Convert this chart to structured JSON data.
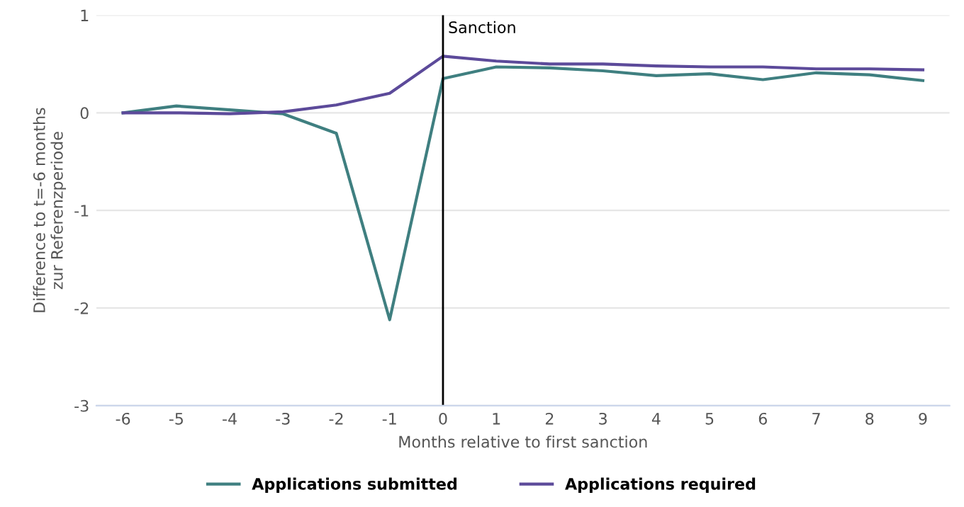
{
  "chart_data": {
    "type": "line",
    "xlabel": "Months relative to first sanction",
    "ylabel": "Difference to t=-6 months\nzur Referenzperiode",
    "x": [
      -6,
      -5,
      -4,
      -3,
      -2,
      -1,
      0,
      1,
      2,
      3,
      4,
      5,
      6,
      7,
      8,
      9
    ],
    "series": [
      {
        "name": "Applications submitted",
        "color": "#3f7f80",
        "values": [
          0,
          0.07,
          0.03,
          -0.01,
          -0.21,
          -2.12,
          0.35,
          0.47,
          0.46,
          0.43,
          0.38,
          0.4,
          0.34,
          0.41,
          0.39,
          0.33
        ]
      },
      {
        "name": "Applications required",
        "color": "#5c4a9a",
        "values": [
          0,
          0,
          -0.01,
          0.01,
          0.08,
          0.2,
          0.58,
          0.53,
          0.5,
          0.5,
          0.48,
          0.47,
          0.47,
          0.45,
          0.45,
          0.44
        ]
      }
    ],
    "xlim": [
      -6.5,
      9.5
    ],
    "xticks": [
      -6,
      -5,
      -4,
      -3,
      -2,
      -1,
      0,
      1,
      2,
      3,
      4,
      5,
      6,
      7,
      8,
      9
    ],
    "ylim": [
      -3,
      1
    ],
    "yticks": [
      -3,
      -2,
      -1,
      0,
      1
    ],
    "ref_lines": [
      {
        "axis": "x",
        "value": 0,
        "label": "Sanction",
        "color": "#000000"
      }
    ],
    "grid": "y",
    "legend": "bottom",
    "marker": "none",
    "line_style": "solid"
  }
}
